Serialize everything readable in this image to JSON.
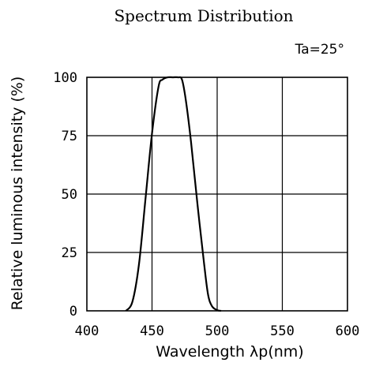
{
  "chart_data": {
    "type": "line",
    "title": "Spectrum Distribution",
    "annotation": "Ta=25°",
    "xlabel": "Wavelength λp(nm)",
    "ylabel": "Relative luminous intensity (%)",
    "xlim": [
      400,
      600
    ],
    "ylim": [
      0,
      100
    ],
    "x_ticks": [
      "400",
      "450",
      "500",
      "550",
      "600"
    ],
    "y_ticks": [
      "0",
      "25",
      "50",
      "75",
      "100"
    ],
    "grid": true,
    "series": [
      {
        "x": [
          430,
          435,
          440,
          445,
          450,
          455,
          458,
          462,
          466,
          470,
          473,
          476,
          480,
          485,
          490,
          493,
          496,
          500,
          503
        ],
        "y": [
          0,
          4,
          20,
          48,
          76,
          96,
          99,
          100,
          100,
          100,
          99,
          90,
          72,
          45,
          20,
          7,
          2,
          0.3,
          0
        ]
      }
    ],
    "line_color": "#000000"
  }
}
